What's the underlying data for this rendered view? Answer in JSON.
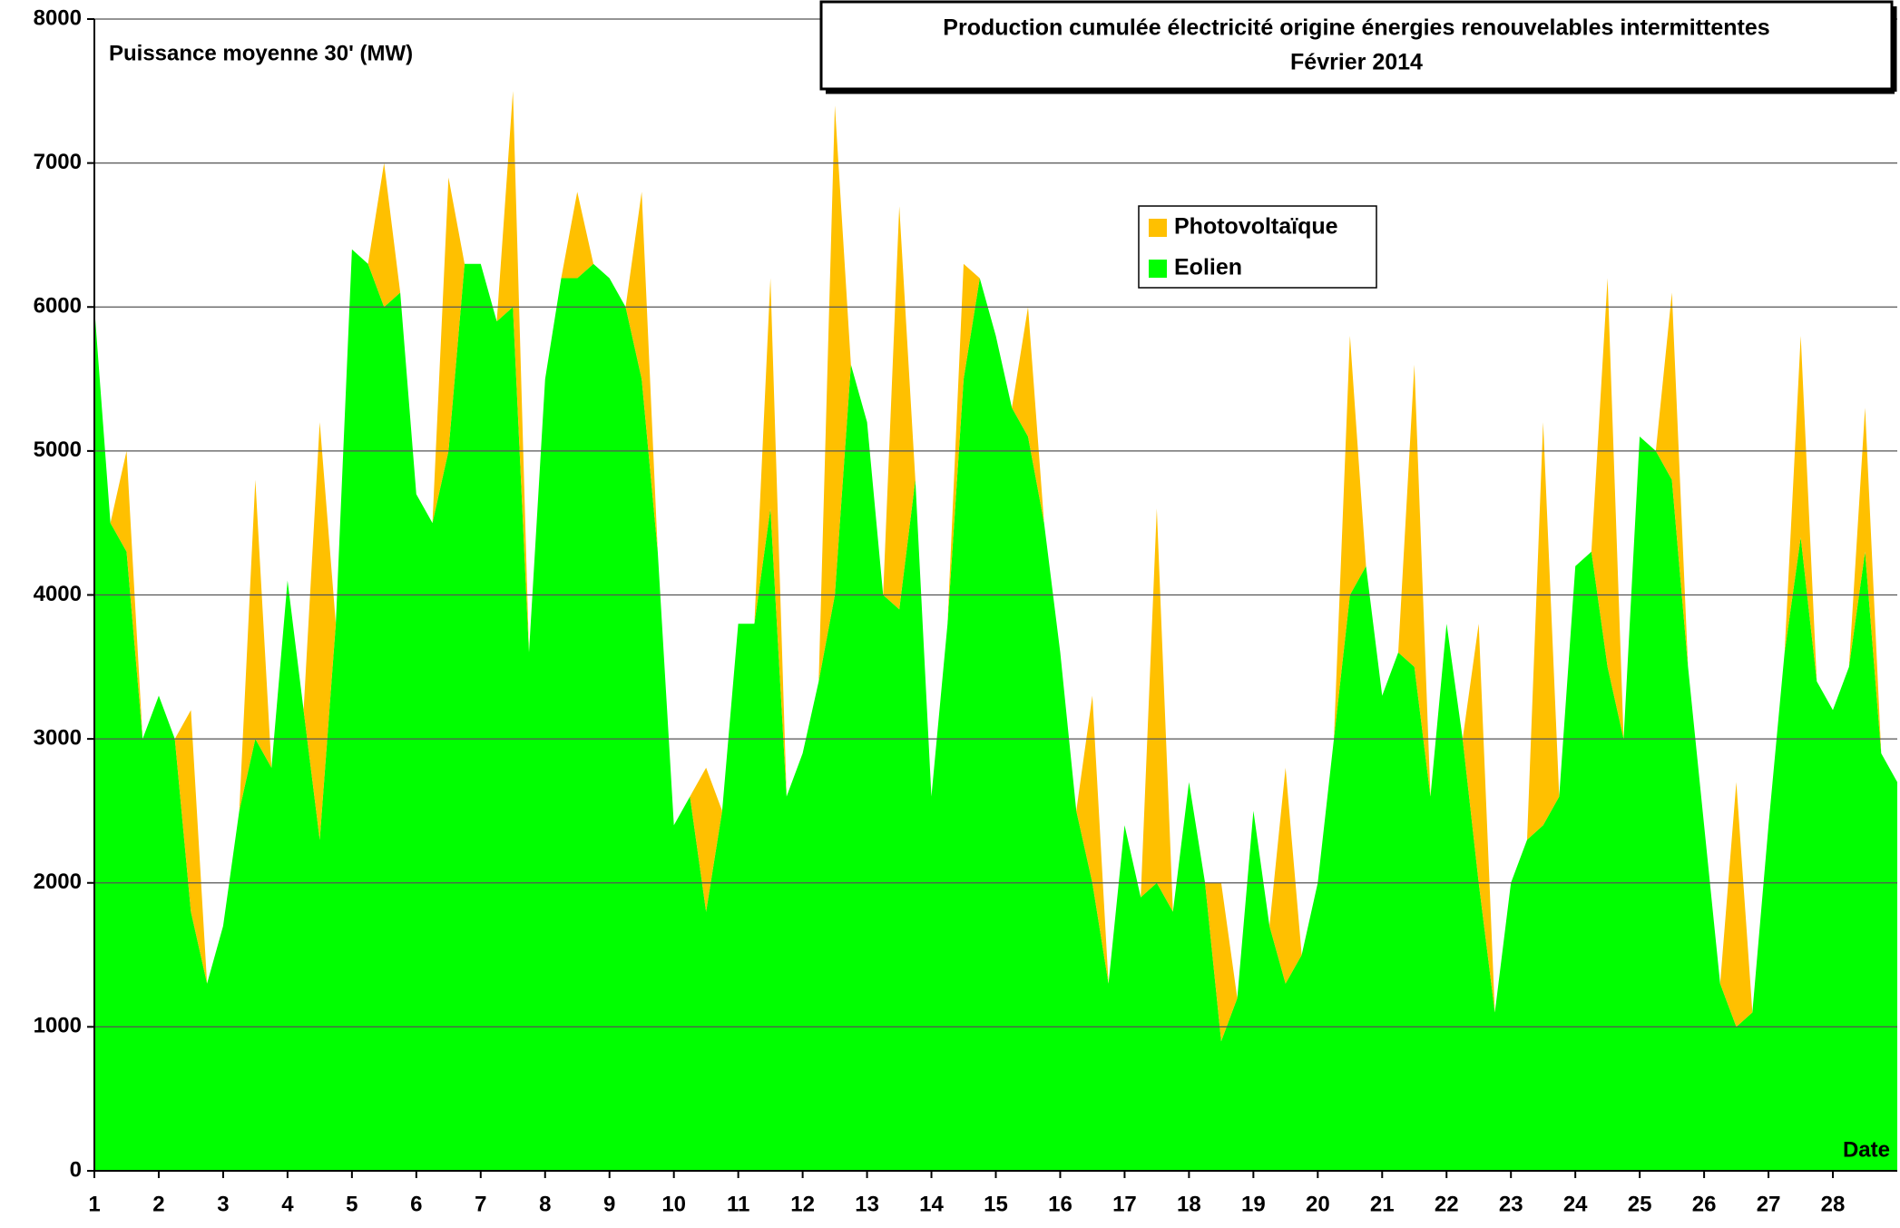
{
  "chart_data": {
    "type": "stacked-area",
    "title": "Production cumulée électricité origine énergies renouvelables intermittentes",
    "subtitle": "Février 2014",
    "y_label": "Puissance moyenne 30' (MW)",
    "x_label": "Date",
    "xlim": [
      1,
      29
    ],
    "xticks": [
      1,
      2,
      3,
      4,
      5,
      6,
      7,
      8,
      9,
      10,
      11,
      12,
      13,
      14,
      15,
      16,
      17,
      18,
      19,
      20,
      21,
      22,
      23,
      24,
      25,
      26,
      27,
      28
    ],
    "ylim": [
      0,
      8000
    ],
    "yticks": [
      0,
      1000,
      2000,
      3000,
      4000,
      5000,
      6000,
      7000,
      8000
    ],
    "grid": true,
    "legend": "top-right",
    "x": [
      1,
      1.25,
      1.5,
      1.75,
      2,
      2.25,
      2.5,
      2.75,
      3,
      3.25,
      3.5,
      3.75,
      4,
      4.25,
      4.5,
      4.75,
      5,
      5.25,
      5.5,
      5.75,
      6,
      6.25,
      6.5,
      6.75,
      7,
      7.25,
      7.5,
      7.75,
      8,
      8.25,
      8.5,
      8.75,
      9,
      9.25,
      9.5,
      9.75,
      10,
      10.25,
      10.5,
      10.75,
      11,
      11.25,
      11.5,
      11.75,
      12,
      12.25,
      12.5,
      12.75,
      13,
      13.25,
      13.5,
      13.75,
      14,
      14.25,
      14.5,
      14.75,
      15,
      15.25,
      15.5,
      15.75,
      16,
      16.25,
      16.5,
      16.75,
      17,
      17.25,
      17.5,
      17.75,
      18,
      18.25,
      18.5,
      18.75,
      19,
      19.25,
      19.5,
      19.75,
      20,
      20.25,
      20.5,
      20.75,
      21,
      21.25,
      21.5,
      21.75,
      22,
      22.25,
      22.5,
      22.75,
      23,
      23.25,
      23.5,
      23.75,
      24,
      24.25,
      24.5,
      24.75,
      25,
      25.25,
      25.5,
      25.75,
      26,
      26.25,
      26.5,
      26.75,
      27,
      27.25,
      27.5,
      27.75,
      28,
      28.25,
      28.5,
      28.75,
      29
    ],
    "series": [
      {
        "name": "Photovoltaïque",
        "color": "#ffc000",
        "values": [
          0,
          0,
          700,
          0,
          0,
          0,
          1400,
          0,
          0,
          0,
          1800,
          0,
          0,
          0,
          2900,
          0,
          0,
          0,
          1000,
          0,
          0,
          0,
          1900,
          0,
          0,
          0,
          1500,
          0,
          0,
          0,
          600,
          0,
          0,
          0,
          1300,
          0,
          0,
          0,
          1000,
          0,
          0,
          0,
          1600,
          0,
          0,
          0,
          3400,
          0,
          0,
          0,
          2800,
          0,
          0,
          0,
          800,
          0,
          0,
          0,
          900,
          0,
          0,
          0,
          1300,
          0,
          0,
          0,
          2600,
          0,
          0,
          0,
          1100,
          0,
          0,
          0,
          1500,
          0,
          0,
          0,
          1800,
          0,
          0,
          0,
          2100,
          0,
          0,
          0,
          1800,
          0,
          0,
          0,
          2800,
          0,
          0,
          0,
          2700,
          0,
          0,
          0,
          1300,
          0,
          0,
          0,
          1700,
          0,
          0,
          0,
          1400,
          0,
          0,
          0,
          1000,
          0,
          0
        ]
      },
      {
        "name": "Eolien",
        "color": "#00ff00",
        "values": [
          6000,
          4500,
          4300,
          3000,
          3300,
          3000,
          1800,
          1300,
          1700,
          2500,
          3000,
          2800,
          4100,
          3200,
          2300,
          3800,
          6400,
          6300,
          6000,
          6100,
          4700,
          4500,
          5000,
          6300,
          6300,
          5900,
          6000,
          3600,
          5500,
          6200,
          6200,
          6300,
          6200,
          6000,
          5500,
          4300,
          2400,
          2600,
          1800,
          2500,
          3800,
          3800,
          4600,
          2600,
          2900,
          3400,
          4000,
          5600,
          5200,
          4000,
          3900,
          4800,
          2600,
          3800,
          5500,
          6200,
          5800,
          5300,
          5100,
          4500,
          3600,
          2500,
          2000,
          1300,
          2400,
          1900,
          2000,
          1800,
          2700,
          2000,
          900,
          1200,
          2500,
          1700,
          1300,
          1500,
          2000,
          3000,
          4000,
          4200,
          3300,
          3600,
          3500,
          2600,
          3800,
          3000,
          2000,
          1100,
          2000,
          2300,
          2400,
          2600,
          4200,
          4300,
          3500,
          3000,
          5100,
          5000,
          4800,
          3500,
          2400,
          1300,
          1000,
          1100,
          2400,
          3600,
          4400,
          3400,
          3200,
          3500,
          4300,
          2900,
          2700
        ]
      }
    ]
  }
}
